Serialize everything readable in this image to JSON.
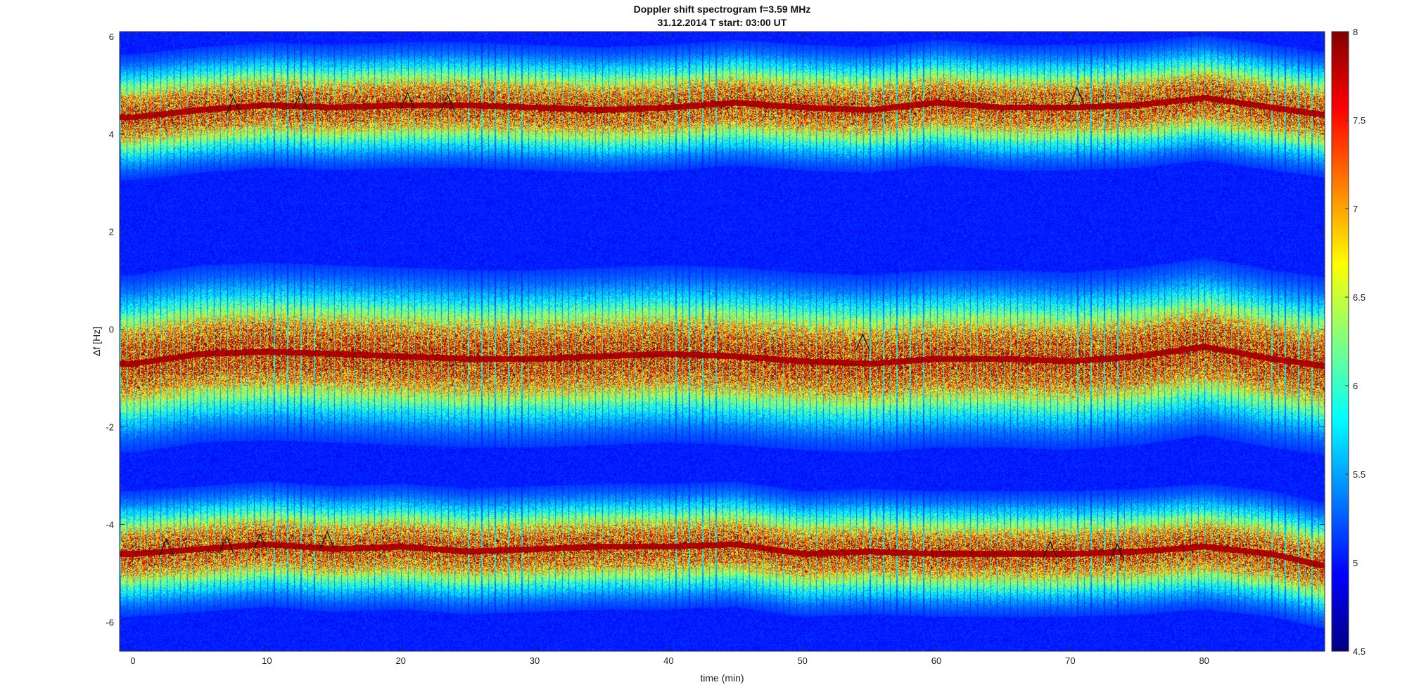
{
  "chart_data": {
    "type": "heatmap",
    "title": "Doppler shift spectrogram f=3.59 MHz",
    "subtitle": "31.12.2014   T start: 03:00 UT",
    "xlabel": "time (min)",
    "ylabel": "Δf [Hz]",
    "xlim": [
      -1,
      89
    ],
    "ylim": [
      -6.6,
      6.1
    ],
    "xticks": [
      0,
      10,
      20,
      30,
      40,
      50,
      60,
      70,
      80
    ],
    "yticks": [
      6,
      4,
      2,
      0,
      -2,
      -4,
      -6
    ],
    "colorbar": {
      "colormap": "jet",
      "range": [
        4.5,
        8
      ],
      "ticks": [
        8,
        7.5,
        7,
        6.5,
        6,
        5.5,
        5,
        4.5
      ]
    },
    "bands": [
      {
        "x": [
          0,
          5,
          10,
          15,
          20,
          25,
          30,
          35,
          40,
          45,
          50,
          55,
          60,
          65,
          70,
          75,
          80,
          85,
          89
        ],
        "center": [
          4.35,
          4.5,
          4.6,
          4.55,
          4.6,
          4.6,
          4.55,
          4.5,
          4.55,
          4.65,
          4.55,
          4.5,
          4.65,
          4.55,
          4.55,
          4.6,
          4.75,
          4.55,
          4.4
        ]
      },
      {
        "x": [
          0,
          5,
          10,
          15,
          20,
          25,
          30,
          35,
          40,
          45,
          50,
          55,
          60,
          65,
          70,
          75,
          80,
          85,
          89
        ],
        "center": [
          -0.7,
          -0.5,
          -0.45,
          -0.5,
          -0.55,
          -0.6,
          -0.6,
          -0.55,
          -0.5,
          -0.55,
          -0.65,
          -0.7,
          -0.6,
          -0.6,
          -0.65,
          -0.55,
          -0.35,
          -0.6,
          -0.75
        ]
      },
      {
        "x": [
          0,
          5,
          10,
          15,
          20,
          25,
          30,
          35,
          40,
          45,
          50,
          55,
          60,
          65,
          70,
          75,
          80,
          85,
          89
        ],
        "center": [
          -4.6,
          -4.5,
          -4.4,
          -4.5,
          -4.45,
          -4.55,
          -4.5,
          -4.45,
          -4.45,
          -4.4,
          -4.6,
          -4.55,
          -4.6,
          -4.6,
          -4.6,
          -4.55,
          -4.45,
          -4.6,
          -4.85
        ]
      }
    ],
    "black_trace_spikes": [
      {
        "x": 7.5,
        "y": 4.75
      },
      {
        "x": 12.5,
        "y": 4.85
      },
      {
        "x": 20.5,
        "y": 4.85
      },
      {
        "x": 23.5,
        "y": 4.8
      },
      {
        "x": 70.5,
        "y": 4.95
      },
      {
        "x": 54.5,
        "y": -0.1
      },
      {
        "x": 2.5,
        "y": -4.3
      },
      {
        "x": 7.0,
        "y": -4.25
      },
      {
        "x": 9.5,
        "y": -4.2
      },
      {
        "x": 14.5,
        "y": -4.15
      },
      {
        "x": 68.5,
        "y": -4.35
      },
      {
        "x": 73.5,
        "y": -4.4
      }
    ]
  }
}
